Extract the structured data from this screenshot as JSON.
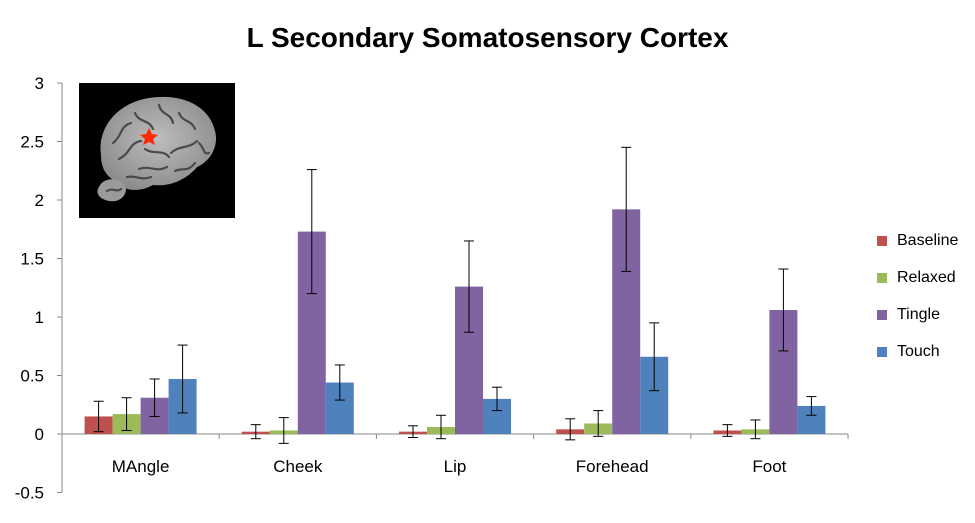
{
  "chart_data": {
    "type": "bar",
    "title": "L Secondary Somatosensory Cortex",
    "xlabel": "",
    "ylabel": "",
    "ylim": [
      -0.5,
      3
    ],
    "yticks": [
      "3",
      "2.5",
      "2",
      "1.5",
      "1",
      "0.5",
      "0",
      "-0.5"
    ],
    "ytick_values": [
      3,
      2.5,
      2,
      1.5,
      1,
      0.5,
      0,
      -0.5
    ],
    "categories": [
      "MAngle",
      "Cheek",
      "Lip",
      "Forehead",
      "Foot"
    ],
    "series": [
      {
        "name": "Baseline",
        "color": "#C0504D",
        "values": [
          0.15,
          0.02,
          0.02,
          0.04,
          0.03
        ],
        "errors": [
          0.13,
          0.06,
          0.05,
          0.09,
          0.05
        ]
      },
      {
        "name": "Relaxed",
        "color": "#9BBB59",
        "values": [
          0.17,
          0.03,
          0.06,
          0.09,
          0.04
        ],
        "errors": [
          0.14,
          0.11,
          0.1,
          0.11,
          0.08
        ]
      },
      {
        "name": "Tingle",
        "color": "#8064A2",
        "values": [
          0.31,
          1.73,
          1.26,
          1.92,
          1.06
        ],
        "errors": [
          0.16,
          0.53,
          0.39,
          0.53,
          0.35
        ]
      },
      {
        "name": "Touch",
        "color": "#4F81BD",
        "values": [
          0.47,
          0.44,
          0.3,
          0.66,
          0.24
        ],
        "errors": [
          0.29,
          0.15,
          0.1,
          0.29,
          0.08
        ]
      }
    ],
    "legend_position": "right"
  },
  "inset": {
    "icon": "brain-mri-icon",
    "marker_color": "#FF2A00"
  }
}
